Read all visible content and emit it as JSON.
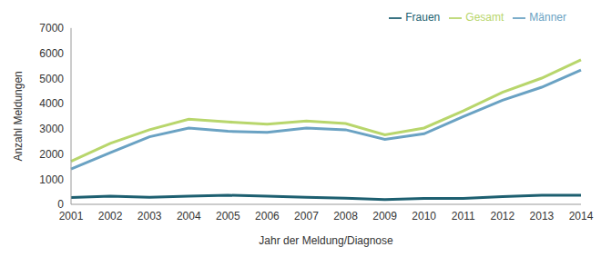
{
  "chart_data": {
    "type": "line",
    "x_label": "Jahr der Meldung/Diagnose",
    "y_label": "Anzahl Meldungen",
    "categories": [
      "2001",
      "2002",
      "2003",
      "2004",
      "2005",
      "2006",
      "2007",
      "2008",
      "2009",
      "2010",
      "2011",
      "2012",
      "2013",
      "2014"
    ],
    "series": [
      {
        "name": "Männer",
        "color": "#6aa2c3",
        "values": [
          1400,
          2050,
          2680,
          3030,
          2900,
          2860,
          3030,
          2960,
          2580,
          2800,
          3480,
          4130,
          4650,
          5330
        ]
      },
      {
        "name": "Frauen",
        "color": "#1d5f70",
        "values": [
          270,
          320,
          280,
          320,
          360,
          320,
          280,
          240,
          190,
          230,
          230,
          310,
          360,
          360
        ]
      },
      {
        "name": "Gesamt",
        "color": "#b8d66c",
        "values": [
          1710,
          2420,
          2960,
          3380,
          3270,
          3180,
          3310,
          3210,
          2760,
          3030,
          3710,
          4450,
          5010,
          5740
        ]
      }
    ],
    "ylim": [
      0,
      7000
    ],
    "yticks": [
      0,
      1000,
      2000,
      3000,
      4000,
      5000,
      6000,
      7000
    ],
    "grid": false,
    "legend": "upper right"
  }
}
